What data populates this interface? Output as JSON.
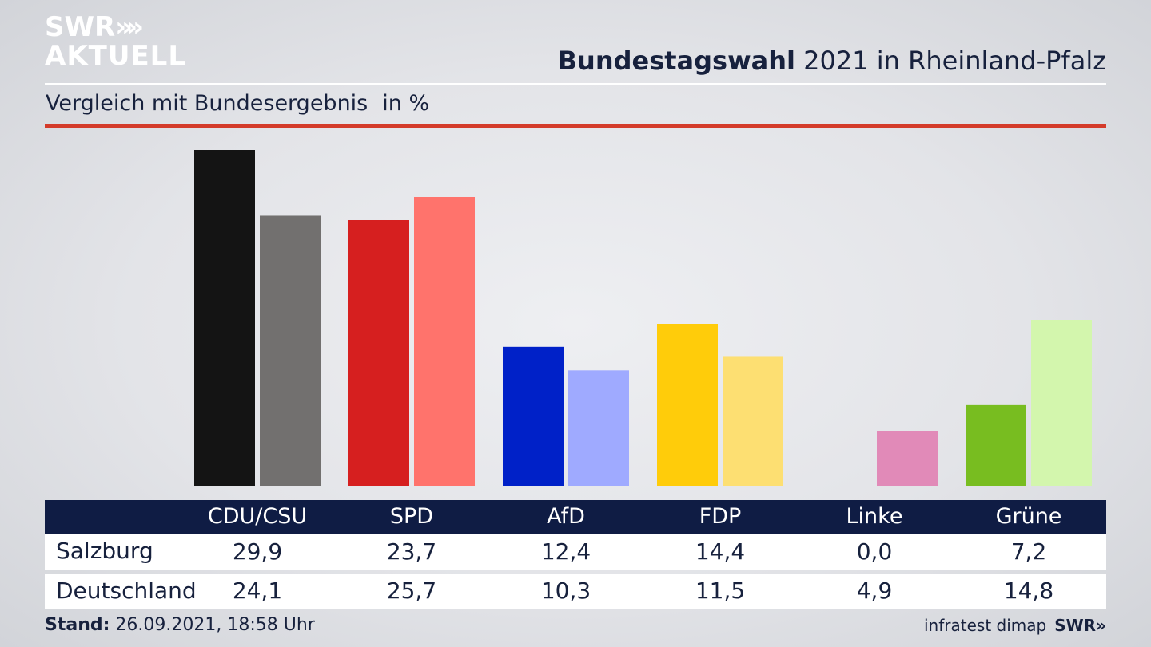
{
  "brand": {
    "line1": "SWR",
    "line2": "AKTUELL",
    "arrows": "»",
    "footer_brand": "SWR»",
    "source": "infratest dimap"
  },
  "header": {
    "title_bold": "Bundestagswahl",
    "title_rest": " 2021 in Rheinland-Pfalz"
  },
  "subtitle": {
    "text": "Vergleich mit Bundesergebnis",
    "unit": "in %"
  },
  "footer": {
    "stand_label": "Stand:",
    "stand_value": " 26.09.2021, 18:58 Uhr"
  },
  "table": {
    "headers": [
      "CDU/CSU",
      "SPD",
      "AfD",
      "FDP",
      "Linke",
      "Grüne"
    ],
    "rows": [
      {
        "label": "Salzburg",
        "values": [
          "29,9",
          "23,7",
          "12,4",
          "14,4",
          "0,0",
          "7,2"
        ]
      },
      {
        "label": "Deutschland",
        "values": [
          "24,1",
          "25,7",
          "10,3",
          "11,5",
          "4,9",
          "14,8"
        ]
      }
    ]
  },
  "colors": {
    "accent_red": "#d43b2a",
    "navy": "#0f1c44"
  },
  "chart_data": {
    "type": "bar",
    "categories": [
      "CDU/CSU",
      "SPD",
      "AfD",
      "FDP",
      "Linke",
      "Grüne"
    ],
    "series": [
      {
        "name": "Salzburg",
        "values": [
          29.9,
          23.7,
          12.4,
          14.4,
          0.0,
          7.2
        ],
        "colors": [
          "#141414",
          "#d61f1f",
          "#0021c8",
          "#ffcc0a",
          "#d872a8",
          "#78bd20"
        ]
      },
      {
        "name": "Deutschland",
        "values": [
          24.1,
          25.7,
          10.3,
          11.5,
          4.9,
          14.8
        ],
        "colors": [
          "#72706f",
          "#ff736c",
          "#9faaff",
          "#fddf72",
          "#e18ab8",
          "#d3f6ad"
        ]
      }
    ],
    "title": "Bundestagswahl 2021 in Rheinland-Pfalz",
    "subtitle": "Vergleich mit Bundesergebnis",
    "unit": "in %",
    "ylim": [
      0,
      29.9
    ],
    "grid": false,
    "legend": "table below chart"
  }
}
